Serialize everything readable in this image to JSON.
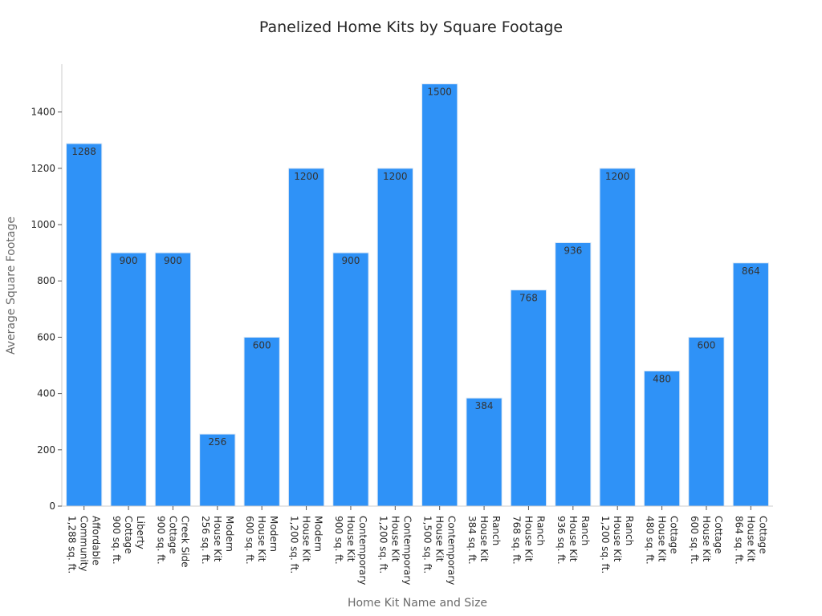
{
  "chart_data": {
    "type": "bar",
    "title": "Panelized Home Kits by Square Footage",
    "xlabel": "Home Kit Name and Size",
    "ylabel": "Average Square Footage",
    "ylim": [
      0,
      1570
    ],
    "yticks": [
      0,
      200,
      400,
      600,
      800,
      1000,
      1200,
      1400
    ],
    "grid": false,
    "bar_color": "#2f92f7",
    "categories": [
      [
        "Affordable",
        "Community",
        "1,288 sq. ft."
      ],
      [
        "Liberty",
        "Cottage",
        "900 sq. ft."
      ],
      [
        "Creek Side",
        "Cottage",
        "900 sq. ft."
      ],
      [
        "Modern",
        "House Kit",
        "256 sq. ft."
      ],
      [
        "Modern",
        "House Kit",
        "600 sq. ft."
      ],
      [
        "Modern",
        "House Kit",
        "1,200 sq. ft."
      ],
      [
        "Contemporary",
        "House Kit",
        "900 sq. ft."
      ],
      [
        "Contemporary",
        "House Kit",
        "1,200 sq. ft."
      ],
      [
        "Contemporary",
        "House Kit",
        "1,500 sq. ft."
      ],
      [
        "Ranch",
        "House Kit",
        "384 sq. ft."
      ],
      [
        "Ranch",
        "House Kit",
        "768 sq. ft."
      ],
      [
        "Ranch",
        "House Kit",
        "936 sq. ft."
      ],
      [
        "Ranch",
        "House Kit",
        "1,200 sq. ft."
      ],
      [
        "Cottage",
        "House Kit",
        "480 sq. ft."
      ],
      [
        "Cottage",
        "House Kit",
        "600 sq. ft."
      ],
      [
        "Cottage",
        "House Kit",
        "864 sq. ft."
      ]
    ],
    "values": [
      1288,
      900,
      900,
      256,
      600,
      1200,
      900,
      1200,
      1500,
      384,
      768,
      936,
      1200,
      480,
      600,
      864
    ]
  }
}
